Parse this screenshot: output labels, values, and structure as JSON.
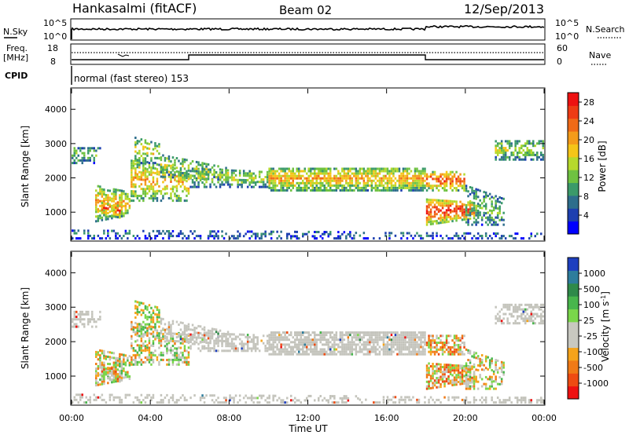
{
  "header": {
    "station": "Hankasalmi (fitACF)",
    "beam": "Beam 02",
    "date": "12/Sep/2013"
  },
  "strips": {
    "nsky_label": "N.Sky",
    "nsearch_label": "N.Search",
    "freq_label_1": "Freq.",
    "freq_label_2": "[MHz]",
    "nave_label": "Nave",
    "cpid_label": "CPID",
    "cpid_text": "normal (fast stereo) 153",
    "noise_ticks": [
      "10^5",
      "10^0"
    ],
    "freq_ticks": [
      "18",
      "8"
    ],
    "nave_ticks": [
      "60",
      "0"
    ]
  },
  "colors": {
    "power_scale": [
      "#0000ff",
      "#1d3fb0",
      "#2e6e8c",
      "#3b9a6a",
      "#6fc241",
      "#b6d92c",
      "#f5c518",
      "#f49b1a",
      "#f06a17",
      "#ee3b14",
      "#ee1111"
    ],
    "velocity_scale": [
      "#1e3fbf",
      "#2e7d9c",
      "#2f8a4a",
      "#48b64c",
      "#7ad64a",
      "#c8c8c0",
      "#c8c8c0",
      "#f5a31a",
      "#f07a16",
      "#ee4b12",
      "#ee1111"
    ],
    "scatter_grey": "#c4c4bc"
  },
  "chart_data": [
    {
      "type": "heatmap",
      "name": "power",
      "ylabel": "Slant Range [km]",
      "ylim": [
        180,
        4600
      ],
      "yticks": [
        "1000",
        "2000",
        "3000",
        "4000"
      ],
      "xlim": [
        0,
        24
      ],
      "colorbar_label": "Power [dB]",
      "colorbar_ticks": [
        "4",
        "8",
        "12",
        "16",
        "20",
        "24",
        "28"
      ],
      "colorbar_range": [
        0,
        30
      ]
    },
    {
      "type": "heatmap",
      "name": "velocity",
      "ylabel": "Slant Range [km]",
      "ylim": [
        180,
        4600
      ],
      "yticks": [
        "1000",
        "2000",
        "3000",
        "4000"
      ],
      "xlim": [
        0,
        24
      ],
      "xlabel": "Time UT",
      "xticks": [
        "00:00",
        "04:00",
        "08:00",
        "12:00",
        "16:00",
        "20:00",
        "00:00"
      ],
      "colorbar_label": "Velocity [m s",
      "colorbar_label_sup": "-1",
      "colorbar_label_end": "]",
      "colorbar_ticks": [
        "1000",
        "500",
        "100",
        "25",
        "-25",
        "-100",
        "-500",
        "-1000"
      ]
    }
  ]
}
